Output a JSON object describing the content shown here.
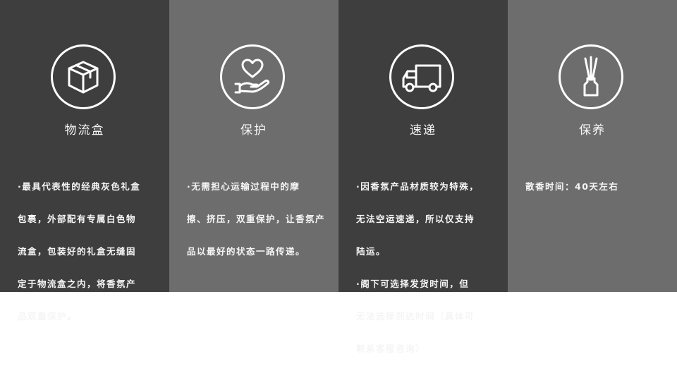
{
  "panels": [
    {
      "icon": "package-box-icon",
      "title": "物流盒",
      "lines": [
        "·最具代表性的经典灰色礼盒",
        "包裹，外部配有专属白色物",
        "流盒，包装好的礼盒无缝固",
        "定于物流盒之内，将香氛产",
        "品双重保护。"
      ]
    },
    {
      "icon": "heart-in-hand-icon",
      "title": "保护",
      "lines": [
        "·无需担心运输过程中的摩",
        "擦、挤压，双重保护，让香氛产",
        "品以最好的状态一路传递。"
      ]
    },
    {
      "icon": "delivery-truck-icon",
      "title": "速递",
      "lines": [
        "·因香氛产品材质较为特殊，",
        "无法空运速递，所以仅支持",
        "陆运。",
        "·阁下可选择发货时间，但",
        "无法选择到达时间（具体可",
        "联系客服咨询）"
      ]
    },
    {
      "icon": "reed-diffuser-icon",
      "title": "保养",
      "lines": [
        "散香时间：40天左右"
      ]
    }
  ],
  "colors": {
    "dark": "#3e3e3e",
    "light": "#6d6d6d",
    "icon": "#ffffff"
  }
}
